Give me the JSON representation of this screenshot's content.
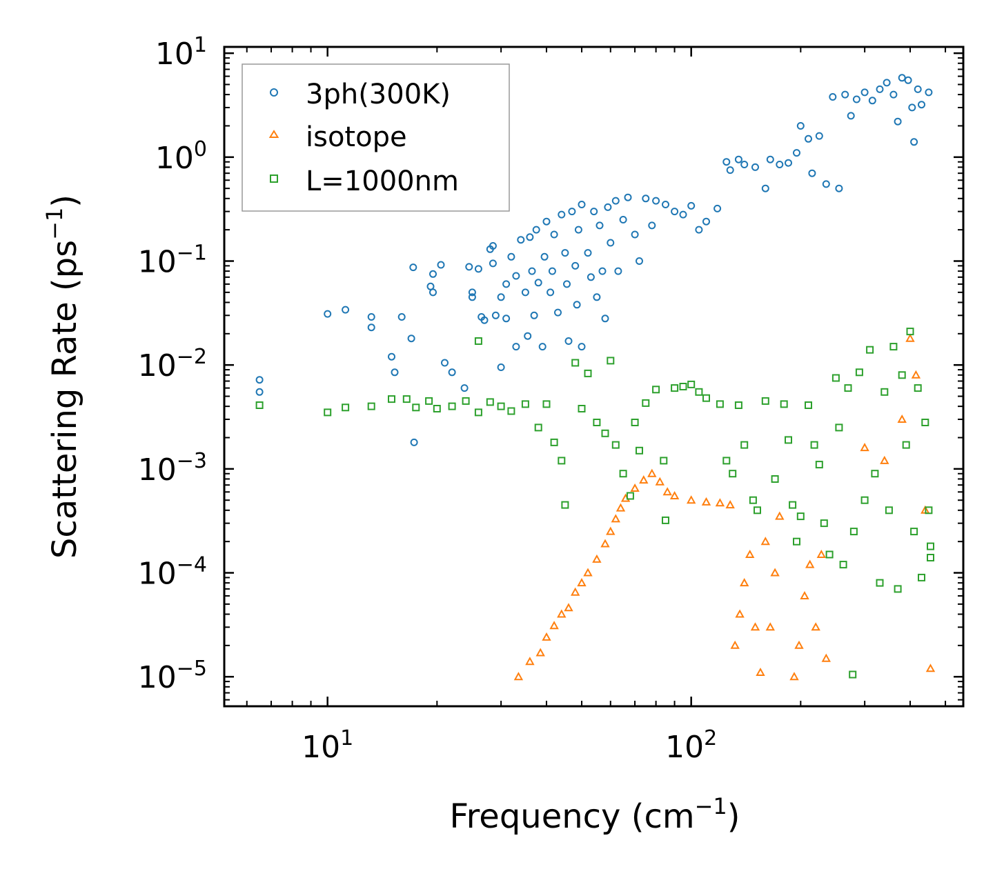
{
  "chart_data": {
    "type": "scatter",
    "xscale": "log",
    "yscale": "log",
    "xlim": [
      5.2,
      560
    ],
    "ylim": [
      5.2e-06,
      11.5
    ],
    "xlabel": "Frequency (cm",
    "xlabel_sup": "−1",
    "xlabel_end": ")",
    "ylabel": "Scattering Rate (ps",
    "ylabel_sup": "−1",
    "ylabel_end": ")",
    "x_ticks": [
      {
        "value": 10,
        "base": "10",
        "exp": "1"
      },
      {
        "value": 100,
        "base": "10",
        "exp": "2"
      }
    ],
    "y_ticks": [
      {
        "value": 10,
        "base": "10",
        "exp": "1"
      },
      {
        "value": 1,
        "base": "10",
        "exp": "0"
      },
      {
        "value": 0.1,
        "base": "10",
        "exp": "−1"
      },
      {
        "value": 0.01,
        "base": "10",
        "exp": "−2"
      },
      {
        "value": 0.001,
        "base": "10",
        "exp": "−3"
      },
      {
        "value": 0.0001,
        "base": "10",
        "exp": "−4"
      },
      {
        "value": 1e-05,
        "base": "10",
        "exp": "−5"
      }
    ],
    "legend_position": "top-left",
    "series": [
      {
        "name": "3ph(300K)",
        "marker": "circle",
        "color": "#1f77b4",
        "points": [
          [
            6.5,
            0.0072
          ],
          [
            6.5,
            0.0055
          ],
          [
            10.0,
            0.031
          ],
          [
            11.2,
            0.034
          ],
          [
            13.2,
            0.029
          ],
          [
            13.2,
            0.023
          ],
          [
            15.0,
            0.012
          ],
          [
            15.3,
            0.0085
          ],
          [
            16.0,
            0.029
          ],
          [
            17.0,
            0.018
          ],
          [
            17.3,
            0.0018
          ],
          [
            17.2,
            0.087
          ],
          [
            19.2,
            0.057
          ],
          [
            19.5,
            0.075
          ],
          [
            19.5,
            0.05
          ],
          [
            20.5,
            0.092
          ],
          [
            21.0,
            0.0105
          ],
          [
            22.0,
            0.0085
          ],
          [
            23.8,
            0.006
          ],
          [
            24.5,
            0.088
          ],
          [
            25.0,
            0.045
          ],
          [
            25.0,
            0.05
          ],
          [
            26.0,
            0.084
          ],
          [
            26.5,
            0.029
          ],
          [
            27.0,
            0.027
          ],
          [
            28.0,
            0.13
          ],
          [
            28.5,
            0.095
          ],
          [
            28.5,
            0.14
          ],
          [
            29.0,
            0.03
          ],
          [
            30.0,
            0.0095
          ],
          [
            30.0,
            0.045
          ],
          [
            31.0,
            0.06
          ],
          [
            31.0,
            0.028
          ],
          [
            32.0,
            0.11
          ],
          [
            33.0,
            0.072
          ],
          [
            33.0,
            0.015
          ],
          [
            34.0,
            0.16
          ],
          [
            35.0,
            0.05
          ],
          [
            35.5,
            0.019
          ],
          [
            36.0,
            0.17
          ],
          [
            36.5,
            0.08
          ],
          [
            37.0,
            0.03
          ],
          [
            37.5,
            0.2
          ],
          [
            38.0,
            0.062
          ],
          [
            39.0,
            0.015
          ],
          [
            39.5,
            0.11
          ],
          [
            40.0,
            0.24
          ],
          [
            41.0,
            0.05
          ],
          [
            41.5,
            0.08
          ],
          [
            42.0,
            0.18
          ],
          [
            43.0,
            0.032
          ],
          [
            44.0,
            0.28
          ],
          [
            45.0,
            0.12
          ],
          [
            45.5,
            0.06
          ],
          [
            46.0,
            0.017
          ],
          [
            47.0,
            0.3
          ],
          [
            48.0,
            0.09
          ],
          [
            48.5,
            0.038
          ],
          [
            49.0,
            0.2
          ],
          [
            50.0,
            0.015
          ],
          [
            50.0,
            0.35
          ],
          [
            52.0,
            0.12
          ],
          [
            53.0,
            0.07
          ],
          [
            54.0,
            0.3
          ],
          [
            55.0,
            0.045
          ],
          [
            56.0,
            0.22
          ],
          [
            57.0,
            0.08
          ],
          [
            58.0,
            0.028
          ],
          [
            59.0,
            0.33
          ],
          [
            60.0,
            0.15
          ],
          [
            62.0,
            0.38
          ],
          [
            63.0,
            0.08
          ],
          [
            65.0,
            0.25
          ],
          [
            67.0,
            0.41
          ],
          [
            70.0,
            0.18
          ],
          [
            72.0,
            0.1
          ],
          [
            75.0,
            0.4
          ],
          [
            78.0,
            0.22
          ],
          [
            80.0,
            0.38
          ],
          [
            85.0,
            0.35
          ],
          [
            90.0,
            0.3
          ],
          [
            95.0,
            0.28
          ],
          [
            100.0,
            0.34
          ],
          [
            105.0,
            0.2
          ],
          [
            110.0,
            0.24
          ],
          [
            118.0,
            0.32
          ],
          [
            125.0,
            0.9
          ],
          [
            128.0,
            0.75
          ],
          [
            135.0,
            0.95
          ],
          [
            140.0,
            0.85
          ],
          [
            150.0,
            0.8
          ],
          [
            160.0,
            0.5
          ],
          [
            165.0,
            0.95
          ],
          [
            175.0,
            0.85
          ],
          [
            185.0,
            0.88
          ],
          [
            195.0,
            1.1
          ],
          [
            200.0,
            2.0
          ],
          [
            210.0,
            1.5
          ],
          [
            215.0,
            0.7
          ],
          [
            225.0,
            1.6
          ],
          [
            235.0,
            0.55
          ],
          [
            245.0,
            3.8
          ],
          [
            255.0,
            0.5
          ],
          [
            265.0,
            4.0
          ],
          [
            275.0,
            2.5
          ],
          [
            285.0,
            3.6
          ],
          [
            300.0,
            4.2
          ],
          [
            315.0,
            3.5
          ],
          [
            330.0,
            4.5
          ],
          [
            345.0,
            5.2
          ],
          [
            360.0,
            4.0
          ],
          [
            370.0,
            2.2
          ],
          [
            380.0,
            5.8
          ],
          [
            395.0,
            5.5
          ],
          [
            405.0,
            3.0
          ],
          [
            410.0,
            1.4
          ],
          [
            420.0,
            4.5
          ],
          [
            430.0,
            3.2
          ],
          [
            450.0,
            4.2
          ]
        ]
      },
      {
        "name": "isotope",
        "marker": "triangle",
        "color": "#ff7f0e",
        "points": [
          [
            33.5,
            1e-05
          ],
          [
            36.0,
            1.4e-05
          ],
          [
            38.5,
            1.7e-05
          ],
          [
            40.0,
            2.4e-05
          ],
          [
            42.0,
            3.1e-05
          ],
          [
            44.0,
            4e-05
          ],
          [
            46.0,
            4.6e-05
          ],
          [
            48.0,
            6.5e-05
          ],
          [
            50.0,
            8e-05
          ],
          [
            52.0,
            0.0001
          ],
          [
            55.0,
            0.000135
          ],
          [
            58.0,
            0.00019
          ],
          [
            60.0,
            0.00025
          ],
          [
            62.0,
            0.00033
          ],
          [
            64.0,
            0.00042
          ],
          [
            66.0,
            0.00052
          ],
          [
            70.0,
            0.00065
          ],
          [
            74.0,
            0.00078
          ],
          [
            78.0,
            0.0009
          ],
          [
            82.0,
            0.00075
          ],
          [
            86.0,
            0.0006
          ],
          [
            90.0,
            0.00055
          ],
          [
            100.0,
            0.0005
          ],
          [
            110.0,
            0.00048
          ],
          [
            120.0,
            0.00047
          ],
          [
            128.0,
            0.00045
          ],
          [
            132.0,
            2e-05
          ],
          [
            136.0,
            4e-05
          ],
          [
            140.0,
            8e-05
          ],
          [
            145.0,
            0.00015
          ],
          [
            150.0,
            3e-05
          ],
          [
            155.0,
            1.1e-05
          ],
          [
            160.0,
            0.0002
          ],
          [
            165.0,
            3e-05
          ],
          [
            170.0,
            0.0001
          ],
          [
            175.0,
            0.00035
          ],
          [
            192.0,
            1e-05
          ],
          [
            198.0,
            2e-05
          ],
          [
            205.0,
            6e-05
          ],
          [
            212.0,
            0.00012
          ],
          [
            220.0,
            3e-05
          ],
          [
            228.0,
            0.00015
          ],
          [
            235.0,
            1.5e-05
          ],
          [
            300.0,
            0.0016
          ],
          [
            340.0,
            0.0012
          ],
          [
            380.0,
            0.003
          ],
          [
            400.0,
            0.018
          ],
          [
            415.0,
            0.008
          ],
          [
            440.0,
            0.0004
          ],
          [
            455.0,
            1.2e-05
          ]
        ]
      },
      {
        "name": "L=1000nm",
        "marker": "square",
        "color": "#2ca02c",
        "points": [
          [
            6.5,
            0.0041
          ],
          [
            10.0,
            0.0035
          ],
          [
            11.2,
            0.0039
          ],
          [
            13.2,
            0.004
          ],
          [
            15.0,
            0.0047
          ],
          [
            16.5,
            0.0047
          ],
          [
            17.5,
            0.0039
          ],
          [
            19.0,
            0.0045
          ],
          [
            20.0,
            0.0038
          ],
          [
            22.0,
            0.004
          ],
          [
            24.0,
            0.0045
          ],
          [
            26.0,
            0.017
          ],
          [
            26.0,
            0.0035
          ],
          [
            28.0,
            0.0044
          ],
          [
            30.0,
            0.004
          ],
          [
            32.0,
            0.0036
          ],
          [
            35.0,
            0.0042
          ],
          [
            38.0,
            0.0025
          ],
          [
            40.0,
            0.0042
          ],
          [
            42.0,
            0.0018
          ],
          [
            44.0,
            0.0012
          ],
          [
            45.0,
            0.00045
          ],
          [
            48.0,
            0.0105
          ],
          [
            50.0,
            0.0038
          ],
          [
            52.0,
            0.0083
          ],
          [
            55.0,
            0.0028
          ],
          [
            58.0,
            0.0022
          ],
          [
            60.0,
            0.011
          ],
          [
            62.0,
            0.0017
          ],
          [
            65.0,
            0.0009
          ],
          [
            68.0,
            0.00055
          ],
          [
            70.0,
            0.0028
          ],
          [
            72.0,
            0.0015
          ],
          [
            75.0,
            0.0043
          ],
          [
            80.0,
            0.0058
          ],
          [
            84.0,
            0.0012
          ],
          [
            85.0,
            0.00032
          ],
          [
            90.0,
            0.006
          ],
          [
            95.0,
            0.0062
          ],
          [
            100.0,
            0.0065
          ],
          [
            105.0,
            0.0055
          ],
          [
            110.0,
            0.0048
          ],
          [
            120.0,
            0.0042
          ],
          [
            125.0,
            0.0012
          ],
          [
            130.0,
            0.0009
          ],
          [
            135.0,
            0.0041
          ],
          [
            140.0,
            0.0017
          ],
          [
            148.0,
            0.0005
          ],
          [
            152.0,
            0.0004
          ],
          [
            160.0,
            0.0045
          ],
          [
            170.0,
            0.0008
          ],
          [
            180.0,
            0.0042
          ],
          [
            185.0,
            0.0019
          ],
          [
            190.0,
            0.00045
          ],
          [
            195.0,
            0.0002
          ],
          [
            200.0,
            0.00035
          ],
          [
            210.0,
            0.0041
          ],
          [
            218.0,
            0.0017
          ],
          [
            225.0,
            0.0011
          ],
          [
            232.0,
            0.0003
          ],
          [
            240.0,
            0.00015
          ],
          [
            250.0,
            0.0075
          ],
          [
            255.0,
            0.0025
          ],
          [
            262.0,
            0.00012
          ],
          [
            270.0,
            0.006
          ],
          [
            278.0,
            1.05e-05
          ],
          [
            280.0,
            0.00025
          ],
          [
            290.0,
            0.0085
          ],
          [
            300.0,
            0.0005
          ],
          [
            310.0,
            0.014
          ],
          [
            320.0,
            0.0009
          ],
          [
            330.0,
            8e-05
          ],
          [
            340.0,
            0.0055
          ],
          [
            350.0,
            0.0004
          ],
          [
            360.0,
            0.015
          ],
          [
            370.0,
            7e-05
          ],
          [
            380.0,
            0.008
          ],
          [
            390.0,
            0.0017
          ],
          [
            400.0,
            0.021
          ],
          [
            410.0,
            0.00025
          ],
          [
            420.0,
            0.006
          ],
          [
            430.0,
            9e-05
          ],
          [
            440.0,
            0.0028
          ],
          [
            450.0,
            0.0004
          ],
          [
            455.0,
            0.00018
          ],
          [
            455.0,
            0.00014
          ]
        ]
      }
    ]
  }
}
